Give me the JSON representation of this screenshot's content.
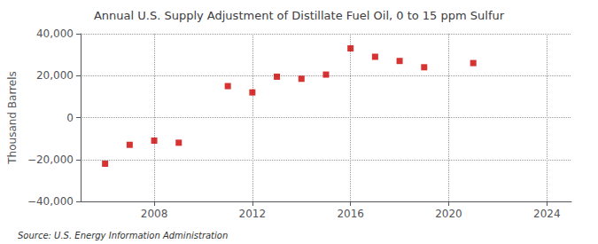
{
  "chart_data": {
    "type": "scatter",
    "title": "Annual U.S. Supply Adjustment of Distillate Fuel Oil, 0 to 15 ppm Sulfur",
    "ylabel": "Thousand Barrels",
    "annotations": [
      "Source: U.S. Energy Information Administration"
    ],
    "x": [
      2006,
      2007,
      2008,
      2009,
      2011,
      2012,
      2013,
      2014,
      2015,
      2016,
      2017,
      2018,
      2019,
      2021
    ],
    "values": [
      -22000,
      -13000,
      -11000,
      -12000,
      15000,
      12000,
      19500,
      18500,
      20500,
      33000,
      29000,
      27000,
      24000,
      26000
    ],
    "color": "#cc0000",
    "marker": "square",
    "xlim": [
      2005,
      2025
    ],
    "xticks": [
      2008,
      2012,
      2016,
      2020,
      2024
    ],
    "ylim": [
      -40000,
      40000
    ],
    "yticks": [
      {
        "value": -40000,
        "label": "−40,000"
      },
      {
        "value": -20000,
        "label": "−20,000"
      },
      0,
      {
        "value": 20000,
        "label": "20,000"
      },
      {
        "value": 40000,
        "label": "40,000"
      }
    ],
    "grid": true
  }
}
